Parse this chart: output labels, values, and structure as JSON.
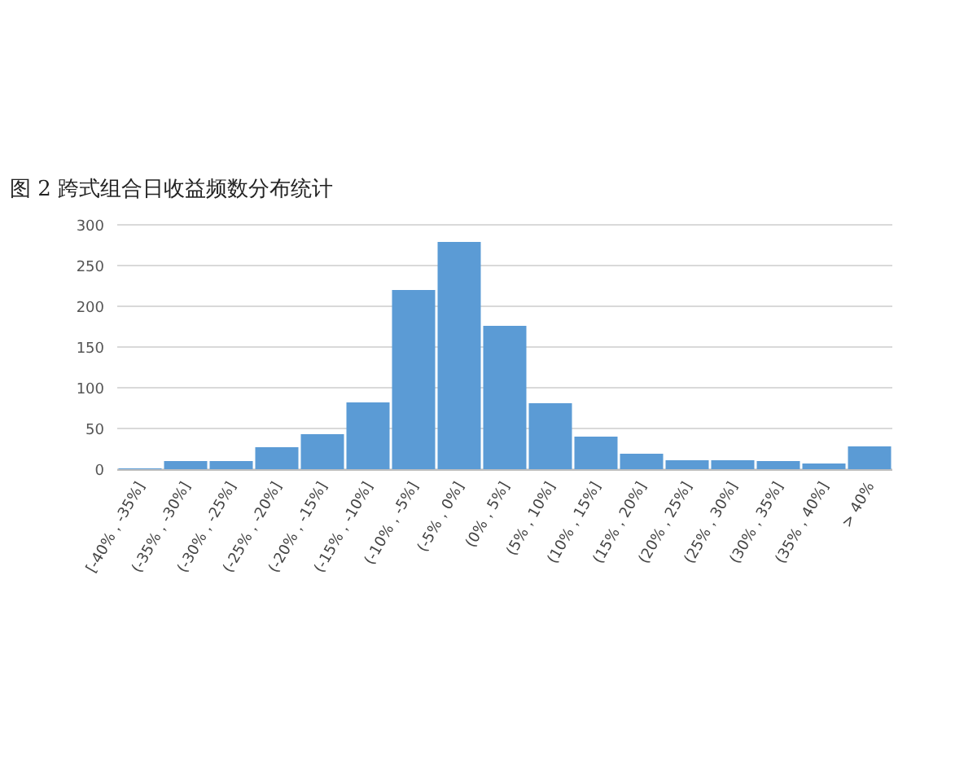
{
  "chart_data": {
    "type": "bar",
    "title": "图 2 跨式组合日收益频数分布统计",
    "categories": [
      "[-40%，-35%]",
      "(-35%，-30%]",
      "(-30%，-25%]",
      "(-25%，-20%]",
      "(-20%，-15%]",
      "(-15%，-10%]",
      "(-10%，-5%]",
      "(-5%，0%]",
      "(0%，5%]",
      "(5%，10%]",
      "(10%，15%]",
      "(15%，20%]",
      "(20%，25%]",
      "(25%，30%]",
      "(30%，35%]",
      "(35%，40%]",
      "> 40%"
    ],
    "values": [
      1,
      10,
      10,
      27,
      43,
      82,
      220,
      279,
      176,
      81,
      40,
      19,
      11,
      11,
      10,
      7,
      28
    ],
    "color": "#5b9bd5",
    "ylim": [
      0,
      300
    ],
    "yticks": [
      0,
      50,
      100,
      150,
      200,
      250,
      300
    ],
    "grid": "y"
  }
}
